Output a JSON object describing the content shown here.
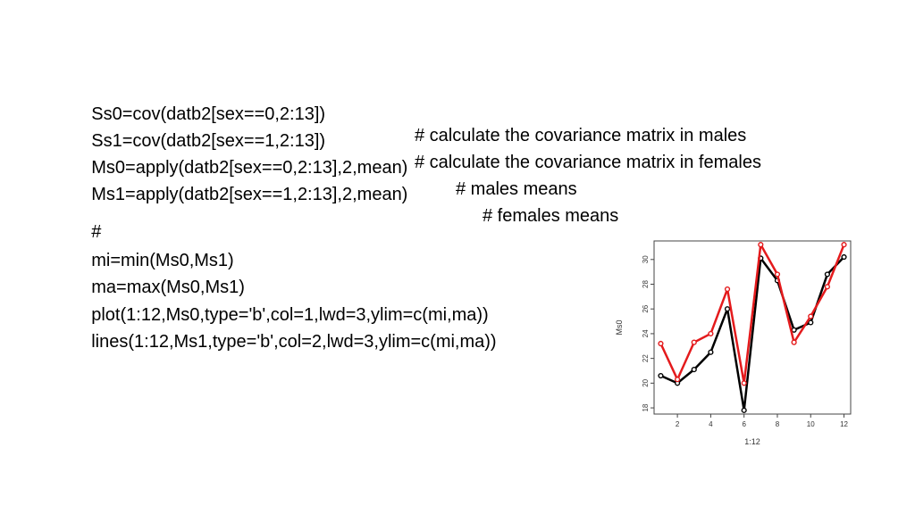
{
  "code": {
    "lines": [
      {
        "code": "Ss0=cov(datb2[sex==0,2:13])",
        "comment": "# calculate the covariance matrix in males"
      },
      {
        "code": "Ss1=cov(datb2[sex==1,2:13])",
        "comment": "# calculate the covariance matrix in females"
      },
      {
        "code": "Ms0=apply(datb2[sex==0,2:13],2,mean)",
        "comment": "# males means"
      },
      {
        "code": "Ms1=apply(datb2[sex==1,2:13],2,mean)",
        "comment": "# females means"
      },
      {
        "code": "#",
        "comment": ""
      },
      {
        "code": "mi=min(Ms0,Ms1)",
        "comment": ""
      },
      {
        "code": "ma=max(Ms0,Ms1)",
        "comment": ""
      },
      {
        "code": "plot(1:12,Ms0,type='b',col=1,lwd=3,ylim=c(mi,ma))",
        "comment": ""
      },
      {
        "code": "lines(1:12,Ms1,type='b',col=2,lwd=3,ylim=c(mi,ma))",
        "comment": ""
      }
    ]
  },
  "chart_data": {
    "type": "line",
    "xlabel": "1:12",
    "ylabel": "Ms0",
    "x": [
      1,
      2,
      3,
      4,
      5,
      6,
      7,
      8,
      9,
      10,
      11,
      12
    ],
    "xlim": [
      0.6,
      12.4
    ],
    "ylim": [
      17.5,
      31.5
    ],
    "xticks": [
      2,
      4,
      6,
      8,
      10,
      12
    ],
    "yticks": [
      18,
      20,
      22,
      24,
      26,
      28,
      30
    ],
    "grid": false,
    "series": [
      {
        "color": "#000000",
        "values": [
          20.6,
          20.0,
          21.1,
          22.5,
          26.0,
          17.8,
          30.1,
          28.3,
          24.3,
          24.9,
          28.8,
          30.2
        ]
      },
      {
        "color": "#e41a1c",
        "values": [
          23.2,
          20.3,
          23.3,
          24.0,
          27.6,
          20.0,
          31.2,
          28.8,
          23.3,
          25.4,
          27.8,
          31.2
        ]
      }
    ]
  }
}
